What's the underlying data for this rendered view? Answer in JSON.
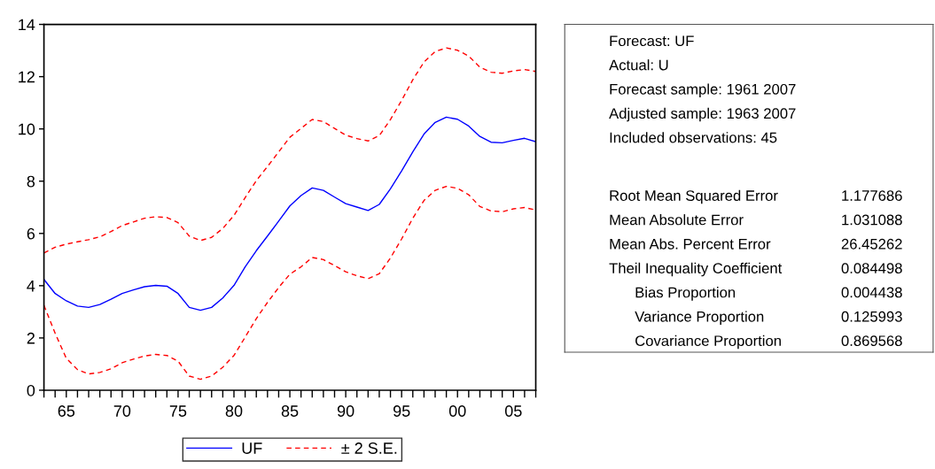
{
  "chart_data": [
    {
      "type": "line",
      "x": [
        1963,
        1964,
        1965,
        1966,
        1967,
        1968,
        1969,
        1970,
        1971,
        1972,
        1973,
        1974,
        1975,
        1976,
        1977,
        1978,
        1979,
        1980,
        1981,
        1982,
        1983,
        1984,
        1985,
        1986,
        1987,
        1988,
        1989,
        1990,
        1991,
        1992,
        1993,
        1994,
        1995,
        1996,
        1997,
        1998,
        1999,
        2000,
        2001,
        2002,
        2003,
        2004,
        2005,
        2006,
        2007
      ],
      "series": [
        {
          "name": "UF",
          "color": "#0000ff",
          "line_style": "solid",
          "values": [
            4.24,
            3.7,
            3.42,
            3.22,
            3.17,
            3.28,
            3.48,
            3.7,
            3.84,
            3.96,
            4.01,
            3.98,
            3.7,
            3.17,
            3.06,
            3.17,
            3.53,
            4.01,
            4.72,
            5.34,
            5.9,
            6.47,
            7.05,
            7.45,
            7.74,
            7.65,
            7.39,
            7.14,
            7.01,
            6.88,
            7.11,
            7.71,
            8.39,
            9.12,
            9.8,
            10.25,
            10.45,
            10.37,
            10.11,
            9.71,
            9.49,
            9.47,
            9.56,
            9.64,
            9.51
          ]
        },
        {
          "name": "± 2 S.E.",
          "color": "#ff0000",
          "line_style": "dashed",
          "values": [
            5.25,
            5.47,
            5.59,
            5.68,
            5.76,
            5.87,
            6.07,
            6.3,
            6.44,
            6.58,
            6.64,
            6.61,
            6.41,
            5.9,
            5.73,
            5.85,
            6.19,
            6.69,
            7.37,
            8.02,
            8.56,
            9.12,
            9.68,
            10.02,
            10.36,
            10.28,
            10.02,
            9.76,
            9.63,
            9.54,
            9.74,
            10.36,
            11.09,
            11.88,
            12.56,
            12.96,
            13.1,
            13.01,
            12.79,
            12.36,
            12.17,
            12.13,
            12.22,
            12.27,
            12.2
          ]
        },
        {
          "color": "#ff0000",
          "line_style": "dashed",
          "values": [
            3.25,
            2.18,
            1.22,
            0.79,
            0.62,
            0.68,
            0.82,
            1.05,
            1.19,
            1.31,
            1.37,
            1.33,
            1.11,
            0.54,
            0.42,
            0.54,
            0.88,
            1.33,
            2.03,
            2.74,
            3.36,
            3.93,
            4.44,
            4.72,
            5.08,
            5.0,
            4.77,
            4.53,
            4.38,
            4.27,
            4.46,
            5.06,
            5.79,
            6.58,
            7.26,
            7.65,
            7.8,
            7.73,
            7.48,
            7.03,
            6.86,
            6.83,
            6.94,
            6.99,
            6.9
          ]
        }
      ],
      "xlim": [
        1963,
        2007
      ],
      "xticks": [
        {
          "value": 1965,
          "label": "65"
        },
        {
          "value": 1970,
          "label": "70"
        },
        {
          "value": 1975,
          "label": "75"
        },
        {
          "value": 1980,
          "label": "80"
        },
        {
          "value": 1985,
          "label": "85"
        },
        {
          "value": 1990,
          "label": "90"
        },
        {
          "value": 1995,
          "label": "95"
        },
        {
          "value": 2000,
          "label": "00"
        },
        {
          "value": 2005,
          "label": "05"
        }
      ],
      "ylim": [
        0,
        14
      ],
      "yticks": [
        0,
        2,
        4,
        6,
        8,
        10,
        12,
        14
      ],
      "grid": false,
      "legend": "bottom"
    },
    {
      "type": "other",
      "annotations": [
        "Forecast: UF",
        "Actual: U",
        "Forecast sample: 1961 2007",
        "Adjusted sample: 1963 2007",
        "Included observations: 45"
      ],
      "categories": [
        "Root Mean Squared Error",
        "Mean Absolute Error",
        "Mean Abs. Percent Error",
        "Theil Inequality Coefficient",
        "Bias Proportion",
        "Variance Proportion",
        "Covariance Proportion"
      ],
      "values": [
        1.177686,
        1.031088,
        26.45262,
        0.084498,
        0.004438,
        0.125993,
        0.869568
      ],
      "data_labels": true
    }
  ]
}
